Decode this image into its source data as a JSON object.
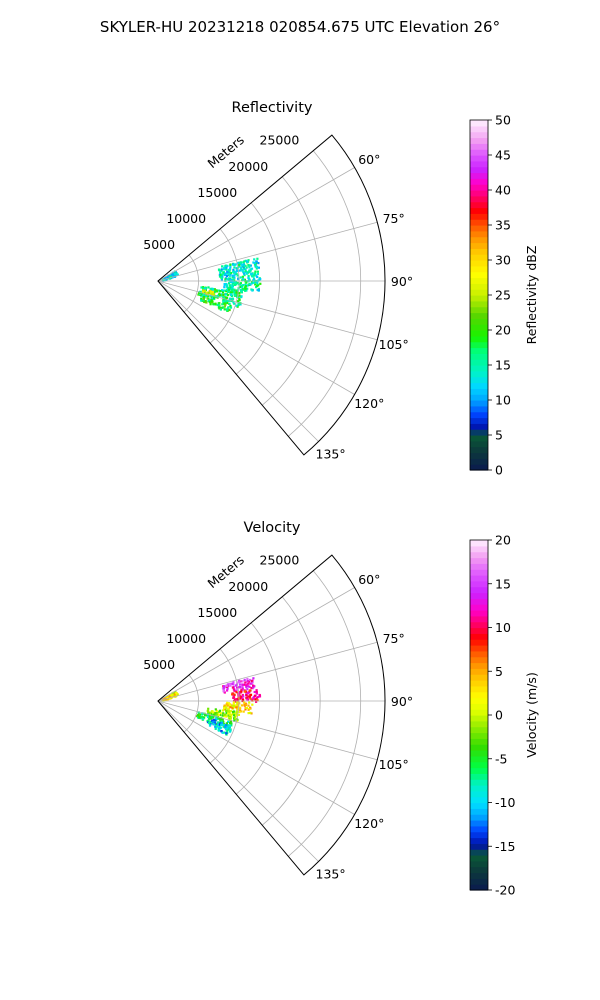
{
  "figure": {
    "suptitle": "SKYLER-HU  20231218  020854.675 UTC Elevation 26°"
  },
  "chart_data": [
    {
      "type": "heatmap",
      "projection": "polar-sector",
      "title": "Reflectivity",
      "radial_label": "Meters",
      "radial_ticks": [
        5000,
        10000,
        15000,
        20000,
        25000
      ],
      "rlim": [
        0,
        28000
      ],
      "azimuth_range_deg": [
        50,
        140
      ],
      "azimuth_ticks": [
        60,
        75,
        90,
        105,
        120,
        135
      ],
      "grid": true,
      "colorbar": {
        "label": "Reflectivity dBZ",
        "range": [
          0,
          50
        ],
        "ticks": [
          0,
          5,
          10,
          15,
          20,
          25,
          30,
          35,
          40,
          45,
          50
        ],
        "colormap": "pyart_HomeyerRainbow"
      },
      "echo_regions": [
        {
          "az": [
            56,
            72
          ],
          "r": [
            500,
            2500
          ],
          "value": 12
        },
        {
          "az": [
            76,
            88
          ],
          "r": [
            7500,
            12500
          ],
          "value": 14
        },
        {
          "az": [
            88,
            96
          ],
          "r": [
            8000,
            12500
          ],
          "value": 15
        },
        {
          "az": [
            96,
            108
          ],
          "r": [
            5000,
            10500
          ],
          "value": 17
        },
        {
          "az": [
            108,
            114
          ],
          "r": [
            5500,
            9500
          ],
          "value": 19
        },
        {
          "az": [
            100,
            104
          ],
          "r": [
            5500,
            7000
          ],
          "value": 28
        }
      ]
    },
    {
      "type": "heatmap",
      "projection": "polar-sector",
      "title": "Velocity",
      "radial_label": "Meters",
      "radial_ticks": [
        5000,
        10000,
        15000,
        20000,
        25000
      ],
      "rlim": [
        0,
        28000
      ],
      "azimuth_range_deg": [
        50,
        140
      ],
      "azimuth_ticks": [
        60,
        75,
        90,
        105,
        120,
        135
      ],
      "grid": true,
      "colorbar": {
        "label": "Velocity (m/s)",
        "range": [
          -20,
          20
        ],
        "ticks": [
          -20,
          -15,
          -10,
          -5,
          0,
          5,
          10,
          15,
          20
        ],
        "colormap": "pyart_BuDRd18"
      },
      "echo_regions": [
        {
          "az": [
            56,
            72
          ],
          "r": [
            500,
            2500
          ],
          "value": 2
        },
        {
          "az": [
            75,
            82
          ],
          "r": [
            8000,
            12000
          ],
          "value": 14
        },
        {
          "az": [
            82,
            90
          ],
          "r": [
            9000,
            12500
          ],
          "value": 10
        },
        {
          "az": [
            90,
            97
          ],
          "r": [
            8000,
            11500
          ],
          "value": 3
        },
        {
          "az": [
            97,
            104
          ],
          "r": [
            6000,
            10000
          ],
          "value": -1
        },
        {
          "az": [
            104,
            112
          ],
          "r": [
            5000,
            9500
          ],
          "value": -6
        },
        {
          "az": [
            108,
            116
          ],
          "r": [
            6500,
            9500
          ],
          "value": -10
        }
      ]
    }
  ]
}
